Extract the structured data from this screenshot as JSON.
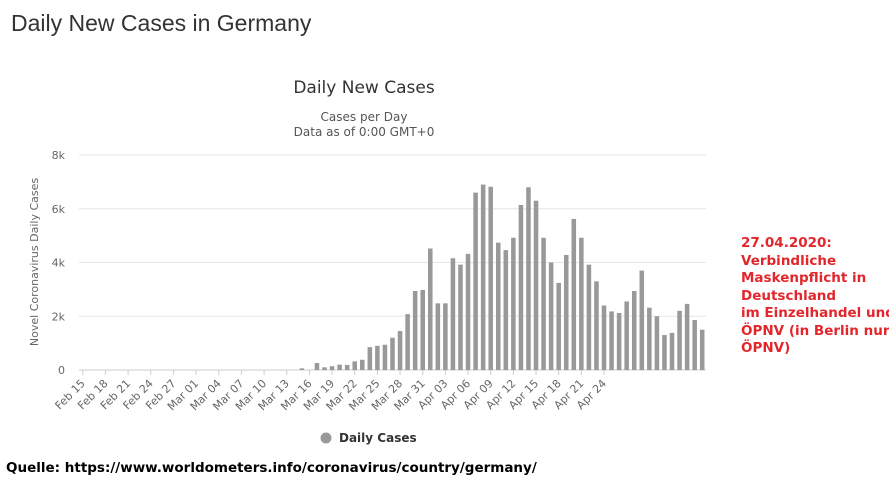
{
  "page_title": "Daily New Cases in Germany",
  "source_text": "Quelle: https://www.worldometers.info/coronavirus/country/germany/",
  "annotation_lines": [
    "27.04.2020:",
    "Verbindliche",
    "Maskenpflicht in",
    "Deutschland",
    "im Einzelhandel und",
    "ÖPNV (in Berlin nur",
    "ÖPNV)"
  ],
  "colors": {
    "bar": "#999999",
    "annotation": "#e3262b",
    "grid": "#e6e6e6"
  },
  "chart_data": {
    "type": "bar",
    "title": "Daily New Cases",
    "subtitle": [
      "Cases per Day",
      "Data as of 0:00 GMT+0"
    ],
    "ylabel": "Novel Coronavirus Daily Cases",
    "xlabel": "",
    "ylim": [
      0,
      8000
    ],
    "yticks": [
      0,
      2000,
      4000,
      6000,
      8000
    ],
    "ytick_labels": [
      "0",
      "2k",
      "4k",
      "6k",
      "8k"
    ],
    "xtick_labels": [
      "Feb 15",
      "Feb 18",
      "Feb 21",
      "Feb 24",
      "Feb 27",
      "Mar 01",
      "Mar 04",
      "Mar 07",
      "Mar 10",
      "Mar 13",
      "Mar 16",
      "Mar 19",
      "Mar 22",
      "Mar 25",
      "Mar 28",
      "Mar 31",
      "Apr 03",
      "Apr 06",
      "Apr 09",
      "Apr 12",
      "Apr 15",
      "Apr 18",
      "Apr 21",
      "Apr 24"
    ],
    "series": [
      {
        "name": "Daily Cases",
        "values": [
          0,
          0,
          0,
          0,
          0,
          0,
          0,
          0,
          0,
          0,
          0,
          0,
          0,
          0,
          0,
          0,
          0,
          0,
          0,
          0,
          0,
          0,
          0,
          0,
          0,
          0,
          0,
          0,
          0,
          60,
          0,
          260,
          100,
          140,
          200,
          190,
          320,
          380,
          850,
          900,
          940,
          1200,
          1450,
          2080,
          2940,
          2980,
          4520,
          2480,
          2480,
          4160,
          3920,
          4320,
          6600,
          6900,
          6820,
          4740,
          4460,
          4920,
          6140,
          6800,
          6300,
          4920,
          4000,
          3240,
          4280,
          5620,
          4920,
          3920,
          3300,
          2400,
          2180,
          2120,
          2550,
          2940,
          3700,
          2320,
          2000,
          1300,
          1380,
          2200,
          2460,
          1860,
          1500
        ]
      }
    ],
    "grid": true,
    "legend": "bottom-center"
  }
}
